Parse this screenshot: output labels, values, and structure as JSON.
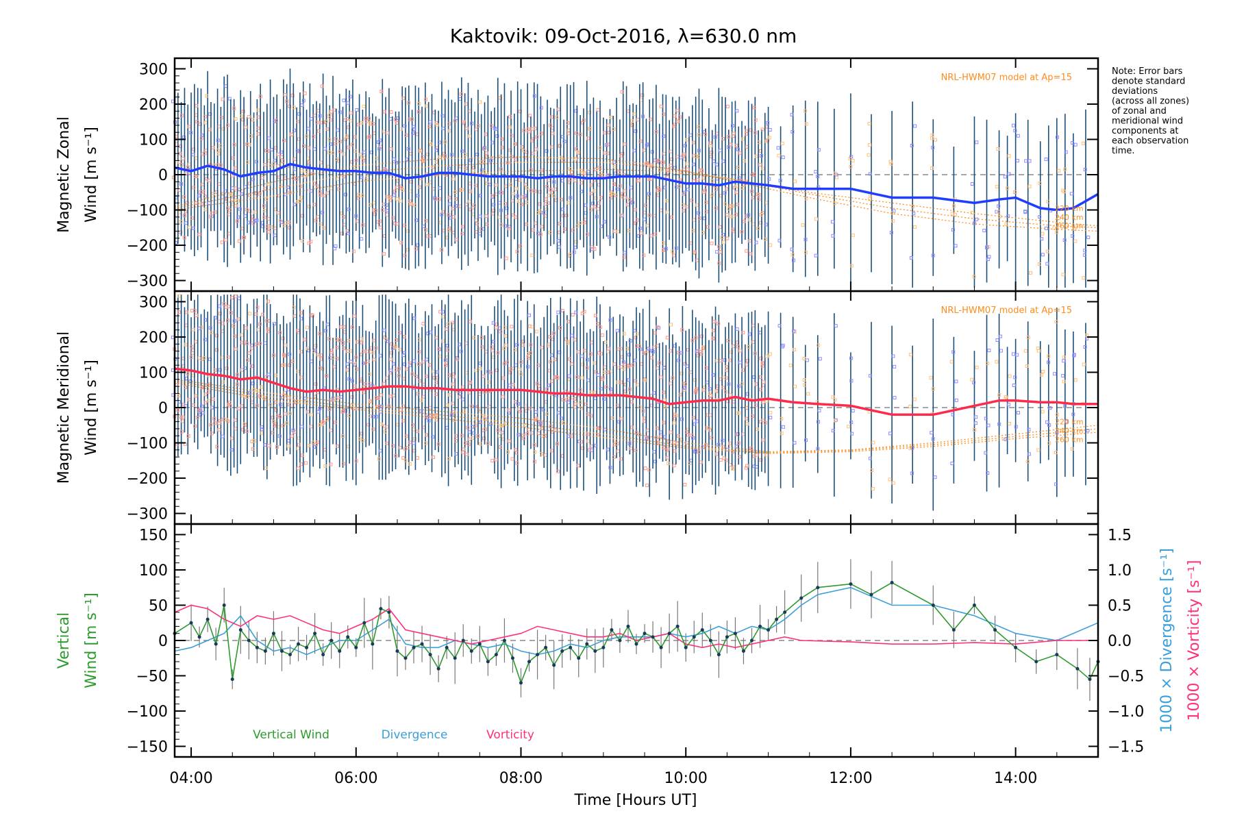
{
  "title": "Kaktovik: 09-Oct-2016, λ=630.0 nm",
  "note": [
    "Note: Error bars",
    "denote standard",
    "deviations",
    "(across all zones)",
    "of zonal and",
    "meridional wind",
    "components at",
    "each observation",
    "time."
  ],
  "colors": {
    "zonal": "#1f3cff",
    "meridional": "#ff2a4a",
    "model": "#ff8c1a",
    "errorbar": "#1a4f7a",
    "vertical": "#2c9a2c",
    "divergence": "#3a9ed8",
    "vorticity": "#ff2f7a",
    "zone_red": "#ff9a8a",
    "zone_blue": "#8a8cff",
    "zone_orange": "#ffc07a",
    "axis": "#000000",
    "zero": "#888888"
  },
  "chart_data": [
    {
      "type": "line",
      "name": "zonal-panel",
      "ylabel": [
        "Magnetic Zonal",
        "Wind [m s⁻¹]"
      ],
      "ylim": [
        -330,
        330
      ],
      "yticks": [
        -300,
        -200,
        -100,
        0,
        100,
        200,
        300
      ],
      "xlim": [
        3.8,
        15.0
      ],
      "annotation": "NRL-HWM07 model at Ap=15",
      "model_labels": [
        "220 km",
        "240 km",
        "260 km"
      ],
      "series": [
        {
          "name": "Zonal wind",
          "x": [
            3.8,
            4.0,
            4.2,
            4.4,
            4.6,
            4.8,
            5.0,
            5.2,
            5.4,
            5.6,
            5.8,
            6.0,
            6.2,
            6.4,
            6.6,
            6.8,
            7.0,
            7.2,
            7.4,
            7.6,
            7.8,
            8.0,
            8.2,
            8.4,
            8.6,
            8.8,
            9.0,
            9.2,
            9.4,
            9.6,
            9.8,
            10.0,
            10.2,
            10.4,
            10.6,
            10.8,
            11.0,
            11.3,
            11.6,
            12.0,
            12.5,
            13.0,
            13.5,
            13.8,
            14.0,
            14.3,
            14.5,
            14.7,
            15.0
          ],
          "y": [
            20,
            10,
            25,
            15,
            -5,
            5,
            10,
            30,
            20,
            15,
            10,
            10,
            5,
            5,
            -10,
            -5,
            5,
            5,
            0,
            -5,
            -5,
            -5,
            -10,
            -5,
            -5,
            -10,
            -10,
            -5,
            -5,
            -5,
            -15,
            -25,
            -25,
            -30,
            -20,
            -25,
            -30,
            -40,
            -40,
            -40,
            -65,
            -65,
            -80,
            -70,
            -65,
            -95,
            -100,
            -95,
            -55
          ]
        },
        {
          "name": "220 km",
          "x": [
            3.8,
            5,
            6,
            7,
            8,
            9,
            9.7,
            10.5,
            11.5,
            12.5,
            13.5,
            14.5,
            15.0
          ],
          "y": [
            -100,
            -60,
            -20,
            0,
            10,
            15,
            10,
            -10,
            -50,
            -80,
            -110,
            -135,
            -145
          ]
        },
        {
          "name": "240 km",
          "x": [
            3.8,
            5,
            6,
            7,
            8,
            9,
            9.7,
            10.5,
            11.5,
            12.5,
            13.5,
            14.5,
            15.0
          ],
          "y": [
            -95,
            -40,
            5,
            25,
            35,
            35,
            20,
            -10,
            -55,
            -95,
            -125,
            -145,
            -150
          ]
        },
        {
          "name": "260 km",
          "x": [
            3.8,
            5,
            6,
            7,
            8,
            9,
            9.7,
            10.5,
            11.5,
            12.5,
            13.5,
            14.5,
            15.0
          ],
          "y": [
            -90,
            -20,
            25,
            45,
            50,
            45,
            25,
            -15,
            -65,
            -110,
            -140,
            -155,
            -160
          ]
        }
      ]
    },
    {
      "type": "line",
      "name": "meridional-panel",
      "ylabel": [
        "Magnetic Meridional",
        "Wind [m s⁻¹]"
      ],
      "ylim": [
        -330,
        330
      ],
      "yticks": [
        -300,
        -200,
        -100,
        0,
        100,
        200,
        300
      ],
      "xlim": [
        3.8,
        15.0
      ],
      "annotation": "NRL-HWM07 model at Ap=15",
      "model_labels": [
        "220 km",
        "240 km",
        "260 km"
      ],
      "series": [
        {
          "name": "Meridional wind",
          "x": [
            3.8,
            4.0,
            4.2,
            4.4,
            4.6,
            4.8,
            5.0,
            5.2,
            5.4,
            5.6,
            5.8,
            6.0,
            6.2,
            6.4,
            6.6,
            6.8,
            7.0,
            7.2,
            7.4,
            7.6,
            7.8,
            8.0,
            8.2,
            8.4,
            8.6,
            8.8,
            9.0,
            9.2,
            9.4,
            9.6,
            9.8,
            10.0,
            10.2,
            10.4,
            10.6,
            10.8,
            11.0,
            11.3,
            11.6,
            12.0,
            12.5,
            13.0,
            13.5,
            13.8,
            14.0,
            14.3,
            14.5,
            14.7,
            15.0
          ],
          "y": [
            110,
            105,
            95,
            90,
            80,
            85,
            70,
            55,
            45,
            50,
            45,
            50,
            55,
            60,
            60,
            55,
            55,
            50,
            50,
            50,
            50,
            50,
            45,
            40,
            40,
            35,
            35,
            35,
            30,
            25,
            10,
            15,
            20,
            20,
            30,
            20,
            25,
            15,
            10,
            5,
            -20,
            -20,
            5,
            20,
            20,
            15,
            15,
            10,
            10
          ]
        },
        {
          "name": "220 km",
          "x": [
            3.8,
            5,
            6,
            7,
            8,
            9,
            10,
            11,
            12,
            13,
            14,
            15.0
          ],
          "y": [
            80,
            40,
            10,
            -10,
            -30,
            -60,
            -100,
            -125,
            -120,
            -100,
            -75,
            -50
          ]
        },
        {
          "name": "240 km",
          "x": [
            3.8,
            5,
            6,
            7,
            8,
            9,
            10,
            11,
            12,
            13,
            14,
            15.0
          ],
          "y": [
            75,
            30,
            0,
            -20,
            -45,
            -75,
            -110,
            -128,
            -122,
            -105,
            -82,
            -60
          ]
        },
        {
          "name": "260 km",
          "x": [
            3.8,
            5,
            6,
            7,
            8,
            9,
            10,
            11,
            12,
            13,
            14,
            15.0
          ],
          "y": [
            70,
            20,
            -5,
            -30,
            -55,
            -85,
            -115,
            -130,
            -125,
            -110,
            -88,
            -70
          ]
        }
      ]
    },
    {
      "type": "line",
      "name": "vertical-panel",
      "ylabel": [
        "Vertical",
        "Wind [m s⁻¹]"
      ],
      "ylim": [
        -165,
        165
      ],
      "yticks": [
        -150,
        -100,
        -50,
        0,
        50,
        100,
        150
      ],
      "xlim": [
        3.8,
        15.0
      ],
      "xticks": [
        4,
        6,
        8,
        10,
        12,
        14
      ],
      "xticklabels": [
        "04:00",
        "06:00",
        "08:00",
        "10:00",
        "12:00",
        "14:00"
      ],
      "xlabel": "Time [Hours UT]",
      "y2label_divergence": "1000 × Divergence [s⁻¹]",
      "y2label_vorticity": "1000 × Vorticity [s⁻¹]",
      "y2lim": [
        -1.65,
        1.65
      ],
      "y2ticks": [
        -1.5,
        -1.0,
        -0.5,
        0.0,
        0.5,
        1.0,
        1.5
      ],
      "y2ticklabels": [
        "−1.5",
        "−1.0",
        "−0.5",
        "0.0",
        "0.5",
        "1.0",
        "1.5"
      ],
      "legend": [
        "Vertical Wind",
        "Divergence",
        "Vorticity"
      ],
      "series": [
        {
          "name": "Vertical Wind",
          "x": [
            3.8,
            4.0,
            4.1,
            4.2,
            4.3,
            4.4,
            4.5,
            4.6,
            4.7,
            4.8,
            4.9,
            5.0,
            5.1,
            5.2,
            5.3,
            5.4,
            5.5,
            5.6,
            5.7,
            5.8,
            5.9,
            6.0,
            6.1,
            6.2,
            6.3,
            6.4,
            6.5,
            6.6,
            6.7,
            6.8,
            6.9,
            7.0,
            7.1,
            7.2,
            7.3,
            7.4,
            7.5,
            7.6,
            7.7,
            7.8,
            7.9,
            8.0,
            8.1,
            8.2,
            8.3,
            8.4,
            8.5,
            8.6,
            8.7,
            8.8,
            8.9,
            9.0,
            9.1,
            9.2,
            9.3,
            9.4,
            9.5,
            9.6,
            9.7,
            9.8,
            9.9,
            10.0,
            10.1,
            10.2,
            10.3,
            10.4,
            10.5,
            10.6,
            10.7,
            10.8,
            10.9,
            11.0,
            11.1,
            11.2,
            11.4,
            11.6,
            12.0,
            12.25,
            12.5,
            13.0,
            13.25,
            13.5,
            13.75,
            14.0,
            14.25,
            14.5,
            14.75,
            14.9,
            15.0
          ],
          "y": [
            10,
            25,
            5,
            30,
            -5,
            50,
            -55,
            15,
            0,
            -10,
            -15,
            10,
            -15,
            -20,
            -5,
            -10,
            10,
            -20,
            0,
            -15,
            5,
            -10,
            25,
            -5,
            45,
            40,
            -15,
            -25,
            -10,
            -5,
            -20,
            -40,
            -10,
            -25,
            0,
            -15,
            -5,
            -30,
            -20,
            0,
            -25,
            -60,
            -30,
            -20,
            -10,
            -35,
            -15,
            -10,
            -25,
            -5,
            -15,
            -10,
            15,
            0,
            20,
            -5,
            10,
            5,
            -10,
            10,
            20,
            -10,
            5,
            15,
            0,
            -20,
            5,
            10,
            -15,
            0,
            20,
            15,
            30,
            40,
            60,
            75,
            80,
            65,
            82,
            50,
            15,
            50,
            15,
            -10,
            -30,
            -20,
            -40,
            -55,
            -30
          ]
        },
        {
          "name": "Divergence",
          "x": [
            3.8,
            4.0,
            4.2,
            4.4,
            4.6,
            4.8,
            5.0,
            5.2,
            5.4,
            5.6,
            5.8,
            6.0,
            6.2,
            6.4,
            6.6,
            6.8,
            7.0,
            7.2,
            7.4,
            7.6,
            7.8,
            8.0,
            8.2,
            8.4,
            8.6,
            8.8,
            9.0,
            9.2,
            9.4,
            9.6,
            9.8,
            10.0,
            10.2,
            10.4,
            10.6,
            10.8,
            11.0,
            11.2,
            11.4,
            11.6,
            12.0,
            12.5,
            13.0,
            13.5,
            14.0,
            14.5,
            15.0
          ],
          "y": [
            -0.15,
            -0.1,
            0.0,
            0.1,
            0.35,
            0.0,
            -0.15,
            -0.1,
            -0.2,
            -0.1,
            0.0,
            0.0,
            0.15,
            0.3,
            -0.05,
            -0.1,
            -0.1,
            0.0,
            -0.05,
            -0.1,
            -0.05,
            -0.15,
            -0.2,
            -0.15,
            -0.05,
            -0.1,
            0.0,
            0.05,
            0.05,
            0.05,
            0.1,
            0.05,
            0.1,
            0.2,
            0.1,
            0.2,
            0.15,
            0.3,
            0.5,
            0.65,
            0.75,
            0.5,
            0.5,
            0.35,
            0.1,
            0.0,
            0.25
          ]
        },
        {
          "name": "Vorticity",
          "x": [
            3.8,
            4.0,
            4.2,
            4.4,
            4.6,
            4.8,
            5.0,
            5.2,
            5.4,
            5.6,
            5.8,
            6.0,
            6.2,
            6.4,
            6.6,
            6.8,
            7.0,
            7.2,
            7.4,
            7.6,
            7.8,
            8.0,
            8.2,
            8.4,
            8.6,
            8.8,
            9.0,
            9.2,
            9.4,
            9.6,
            9.8,
            10.0,
            10.2,
            10.4,
            10.6,
            10.8,
            11.0,
            11.2,
            11.4,
            12.0,
            12.5,
            13.0,
            13.5,
            14.0,
            14.5,
            15.0
          ],
          "y": [
            0.4,
            0.5,
            0.45,
            0.3,
            0.2,
            0.35,
            0.3,
            0.35,
            0.25,
            0.15,
            0.1,
            0.2,
            0.3,
            0.45,
            0.15,
            0.1,
            0.05,
            0.0,
            -0.05,
            0.0,
            0.05,
            0.1,
            0.2,
            0.15,
            0.1,
            0.05,
            0.05,
            0.1,
            0.0,
            0.05,
            0.1,
            -0.05,
            -0.1,
            -0.05,
            -0.1,
            -0.05,
            0.0,
            0.05,
            0.0,
            -0.02,
            -0.05,
            -0.05,
            -0.03,
            -0.05,
            0.0,
            0.0
          ]
        }
      ]
    }
  ]
}
